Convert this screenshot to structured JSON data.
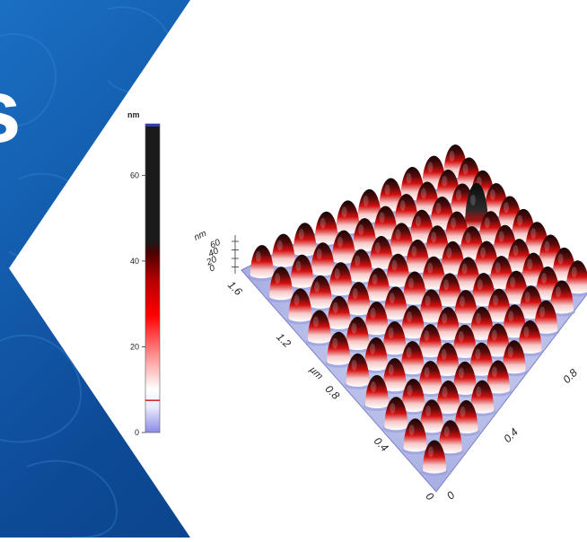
{
  "headline_fragment": "s",
  "colorbar": {
    "unit": "nm",
    "ticks": [
      "60",
      "40",
      "20",
      "0"
    ],
    "marker_value": 7.5,
    "range": [
      0,
      72
    ]
  },
  "surface_plot": {
    "z_axis": {
      "unit": "nm",
      "ticks": [
        "60",
        "40",
        "20",
        "0"
      ]
    },
    "left_axis": {
      "unit": "µm",
      "ticks": [
        "0",
        "0.4",
        "0.8",
        "1.2",
        "1.6"
      ]
    },
    "right_axis": {
      "ticks": [
        "0",
        "0.4",
        "0.8"
      ]
    },
    "feature_count_visible": 96
  },
  "colors": {
    "background_blue": "#0d4a96",
    "hexagon": "#ffffff",
    "bump_top": "#1a0a0a",
    "bump_mid": "#e01010",
    "surface": "#b8bde8"
  }
}
